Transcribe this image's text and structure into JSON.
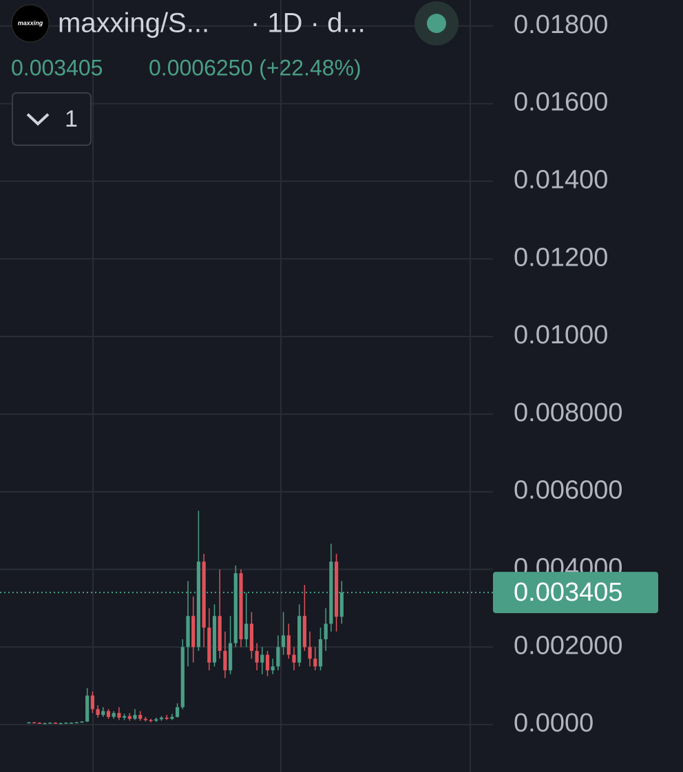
{
  "header": {
    "logo_text": "maxxing",
    "symbol": "maxxing/S...",
    "interval": "· 1D · d...",
    "last": "0.003405",
    "change": "0.0006250 (+22.48%)",
    "indicator_count": "1"
  },
  "chart_data": {
    "type": "candlestick",
    "up_color": "#4a9e86",
    "down_color": "#e0525a",
    "grid": true,
    "last_price": 0.003405,
    "ylim": [
      -0.00122,
      0.01867
    ],
    "yticks": [
      {
        "value": 0.018,
        "label": "0.01800"
      },
      {
        "value": 0.016,
        "label": "0.01600"
      },
      {
        "value": 0.014,
        "label": "0.01400"
      },
      {
        "value": 0.012,
        "label": "0.01200"
      },
      {
        "value": 0.01,
        "label": "0.01000"
      },
      {
        "value": 0.008,
        "label": "0.008000"
      },
      {
        "value": 0.006,
        "label": "0.006000"
      },
      {
        "value": 0.004,
        "label": "0.004000"
      },
      {
        "value": 0.002,
        "label": "0.002000"
      },
      {
        "value": 0,
        "label": "0.0000"
      }
    ],
    "open": [
      5e-05,
      6e-05,
      5e-05,
      4e-05,
      4e-05,
      5e-05,
      4e-05,
      4e-05,
      5e-05,
      5e-05,
      6e-05,
      8e-05,
      0.00075,
      0.0004,
      0.00025,
      0.00035,
      0.0002,
      0.0003,
      0.00018,
      0.00022,
      0.00015,
      0.00025,
      0.00015,
      0.00012,
      0.0001,
      0.00014,
      0.00018,
      0.00015,
      0.0002,
      0.00045,
      0.002,
      0.0028,
      0.002,
      0.0042,
      0.0025,
      0.0016,
      0.0028,
      0.0019,
      0.0014,
      0.0021,
      0.0039,
      0.0022,
      0.0026,
      0.0019,
      0.0016,
      0.0018,
      0.0014,
      0.0015,
      0.002,
      0.0023,
      0.0018,
      0.0016,
      0.0028,
      0.002,
      0.0017,
      0.0015,
      0.0022,
      0.0026,
      0.0042,
      0.00278
    ],
    "high": [
      7e-05,
      7e-05,
      6e-05,
      5e-05,
      6e-05,
      6e-05,
      5e-05,
      6e-05,
      6e-05,
      7e-05,
      9e-05,
      0.00094,
      0.00085,
      0.0005,
      0.00045,
      0.0004,
      0.00035,
      0.00045,
      0.00028,
      0.0003,
      0.0004,
      0.00035,
      0.0002,
      0.00015,
      0.00018,
      0.00022,
      0.00025,
      0.00028,
      0.00055,
      0.0022,
      0.0037,
      0.0033,
      0.00551,
      0.0044,
      0.003,
      0.0031,
      0.004,
      0.0024,
      0.0028,
      0.0041,
      0.004,
      0.0034,
      0.0029,
      0.0021,
      0.002,
      0.0019,
      0.0017,
      0.0023,
      0.0029,
      0.0026,
      0.002,
      0.0031,
      0.0036,
      0.0024,
      0.002,
      0.0025,
      0.003,
      0.00466,
      0.0044,
      0.0037
    ],
    "low": [
      4e-05,
      4e-05,
      3e-05,
      3e-05,
      3e-05,
      3e-05,
      3e-05,
      3e-05,
      4e-05,
      4e-05,
      5e-05,
      7e-05,
      0.0003,
      0.00018,
      0.0002,
      0.00015,
      0.00015,
      0.00012,
      0.00012,
      0.0001,
      0.00012,
      0.0001,
      8e-05,
      6e-05,
      7e-05,
      0.0001,
      0.00012,
      0.00012,
      0.00018,
      0.0004,
      0.0015,
      0.0016,
      0.0019,
      0.002,
      0.0014,
      0.0015,
      0.0017,
      0.0012,
      0.0013,
      0.002,
      0.002,
      0.002,
      0.0017,
      0.0014,
      0.0013,
      0.00125,
      0.0013,
      0.0014,
      0.0018,
      0.0017,
      0.0014,
      0.0015,
      0.0019,
      0.0015,
      0.0014,
      0.0014,
      0.0019,
      0.0024,
      0.0024,
      0.0026
    ],
    "close": [
      6e-05,
      5e-05,
      4e-05,
      4e-05,
      5e-05,
      4e-05,
      4e-05,
      5e-05,
      5e-05,
      6e-05,
      8e-05,
      0.00075,
      0.0004,
      0.00025,
      0.00035,
      0.0002,
      0.0003,
      0.00018,
      0.00022,
      0.00015,
      0.00025,
      0.00015,
      0.00012,
      0.0001,
      0.00014,
      0.00018,
      0.00015,
      0.0002,
      0.00045,
      0.002,
      0.0028,
      0.002,
      0.0042,
      0.0025,
      0.0016,
      0.0028,
      0.0019,
      0.0014,
      0.0021,
      0.0039,
      0.0022,
      0.0026,
      0.0019,
      0.0016,
      0.0018,
      0.0014,
      0.0015,
      0.002,
      0.0023,
      0.0018,
      0.0016,
      0.0028,
      0.002,
      0.0017,
      0.0015,
      0.0022,
      0.0026,
      0.0042,
      0.00278,
      0.003405
    ]
  }
}
